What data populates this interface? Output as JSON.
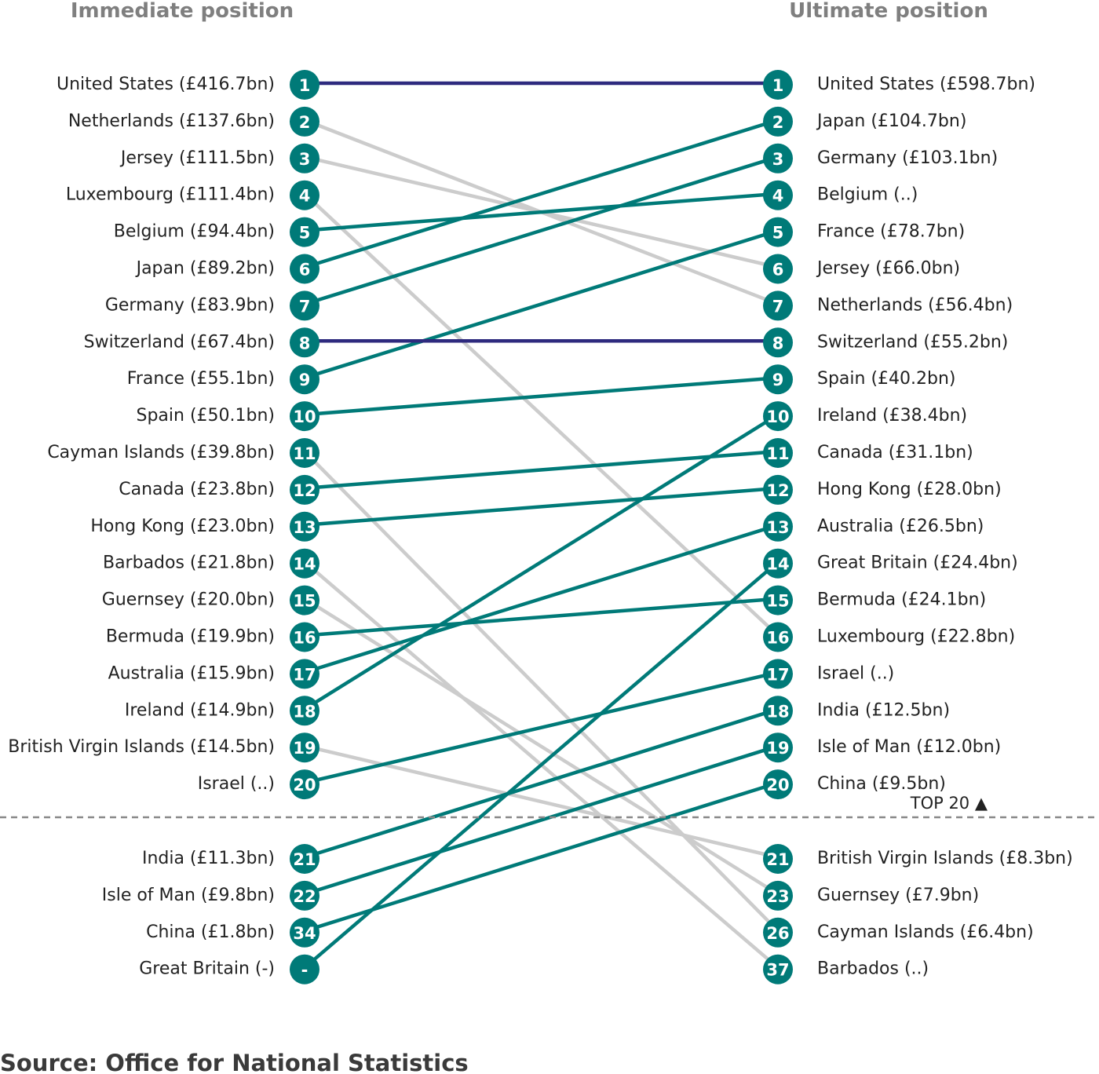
{
  "chart_data": {
    "type": "slope",
    "left_heading": "Immediate position",
    "right_heading": "Ultimate position",
    "source": "Source: Office for National Statistics",
    "cutoff_label": "TOP 20 ▲",
    "colors": {
      "same": "#2e2a7e",
      "up": "#007a78",
      "down": "#cccccc",
      "badge": "#007a78"
    },
    "left": [
      {
        "label": "United States (£416.7bn)",
        "rank": "1"
      },
      {
        "label": "Netherlands (£137.6bn)",
        "rank": "2"
      },
      {
        "label": "Jersey (£111.5bn)",
        "rank": "3"
      },
      {
        "label": "Luxembourg (£111.4bn)",
        "rank": "4"
      },
      {
        "label": "Belgium (£94.4bn)",
        "rank": "5"
      },
      {
        "label": "Japan (£89.2bn)",
        "rank": "6"
      },
      {
        "label": "Germany (£83.9bn)",
        "rank": "7"
      },
      {
        "label": "Switzerland (£67.4bn)",
        "rank": "8"
      },
      {
        "label": "France (£55.1bn)",
        "rank": "9"
      },
      {
        "label": "Spain (£50.1bn)",
        "rank": "10"
      },
      {
        "label": "Cayman Islands (£39.8bn)",
        "rank": "11"
      },
      {
        "label": "Canada (£23.8bn)",
        "rank": "12"
      },
      {
        "label": "Hong Kong (£23.0bn)",
        "rank": "13"
      },
      {
        "label": "Barbados (£21.8bn)",
        "rank": "14"
      },
      {
        "label": "Guernsey (£20.0bn)",
        "rank": "15"
      },
      {
        "label": "Bermuda (£19.9bn)",
        "rank": "16"
      },
      {
        "label": "Australia (£15.9bn)",
        "rank": "17"
      },
      {
        "label": "Ireland (£14.9bn)",
        "rank": "18"
      },
      {
        "label": "British Virgin Islands (£14.5bn)",
        "rank": "19"
      },
      {
        "label": "Israel (..)",
        "rank": "20"
      },
      {
        "label": "India (£11.3bn)",
        "rank": "21"
      },
      {
        "label": "Isle of Man (£9.8bn)",
        "rank": "22"
      },
      {
        "label": "China (£1.8bn)",
        "rank": "34"
      },
      {
        "label": "Great Britain (-)",
        "rank": "-"
      }
    ],
    "right": [
      {
        "label": "United States (£598.7bn)",
        "rank": "1"
      },
      {
        "label": "Japan (£104.7bn)",
        "rank": "2"
      },
      {
        "label": "Germany (£103.1bn)",
        "rank": "3"
      },
      {
        "label": "Belgium (..)",
        "rank": "4"
      },
      {
        "label": "France (£78.7bn)",
        "rank": "5"
      },
      {
        "label": "Jersey (£66.0bn)",
        "rank": "6"
      },
      {
        "label": "Netherlands (£56.4bn)",
        "rank": "7"
      },
      {
        "label": "Switzerland (£55.2bn)",
        "rank": "8"
      },
      {
        "label": "Spain (£40.2bn)",
        "rank": "9"
      },
      {
        "label": "Ireland (£38.4bn)",
        "rank": "10"
      },
      {
        "label": "Canada (£31.1bn)",
        "rank": "11"
      },
      {
        "label": "Hong Kong (£28.0bn)",
        "rank": "12"
      },
      {
        "label": "Australia (£26.5bn)",
        "rank": "13"
      },
      {
        "label": "Great Britain (£24.4bn)",
        "rank": "14"
      },
      {
        "label": "Bermuda (£24.1bn)",
        "rank": "15"
      },
      {
        "label": "Luxembourg (£22.8bn)",
        "rank": "16"
      },
      {
        "label": "Israel (..)",
        "rank": "17"
      },
      {
        "label": "India (£12.5bn)",
        "rank": "18"
      },
      {
        "label": "Isle of Man (£12.0bn)",
        "rank": "19"
      },
      {
        "label": "China (£9.5bn)",
        "rank": "20"
      },
      {
        "label": "British Virgin Islands (£8.3bn)",
        "rank": "21"
      },
      {
        "label": "Guernsey (£7.9bn)",
        "rank": "23"
      },
      {
        "label": "Cayman Islands (£6.4bn)",
        "rank": "26"
      },
      {
        "label": "Barbados (..)",
        "rank": "37"
      }
    ],
    "links": [
      {
        "from": 0,
        "to": 0,
        "change": "same"
      },
      {
        "from": 1,
        "to": 6,
        "change": "down"
      },
      {
        "from": 2,
        "to": 5,
        "change": "down"
      },
      {
        "from": 3,
        "to": 15,
        "change": "down"
      },
      {
        "from": 4,
        "to": 3,
        "change": "up"
      },
      {
        "from": 5,
        "to": 1,
        "change": "up"
      },
      {
        "from": 6,
        "to": 2,
        "change": "up"
      },
      {
        "from": 7,
        "to": 7,
        "change": "same"
      },
      {
        "from": 8,
        "to": 4,
        "change": "up"
      },
      {
        "from": 9,
        "to": 8,
        "change": "up"
      },
      {
        "from": 10,
        "to": 22,
        "change": "down"
      },
      {
        "from": 11,
        "to": 10,
        "change": "up"
      },
      {
        "from": 12,
        "to": 11,
        "change": "up"
      },
      {
        "from": 13,
        "to": 23,
        "change": "down"
      },
      {
        "from": 14,
        "to": 21,
        "change": "down"
      },
      {
        "from": 15,
        "to": 14,
        "change": "up"
      },
      {
        "from": 16,
        "to": 12,
        "change": "up"
      },
      {
        "from": 17,
        "to": 9,
        "change": "up"
      },
      {
        "from": 18,
        "to": 20,
        "change": "down"
      },
      {
        "from": 19,
        "to": 16,
        "change": "up"
      },
      {
        "from": 20,
        "to": 17,
        "change": "up"
      },
      {
        "from": 21,
        "to": 18,
        "change": "up"
      },
      {
        "from": 22,
        "to": 19,
        "change": "up"
      },
      {
        "from": 23,
        "to": 13,
        "change": "up"
      }
    ]
  }
}
